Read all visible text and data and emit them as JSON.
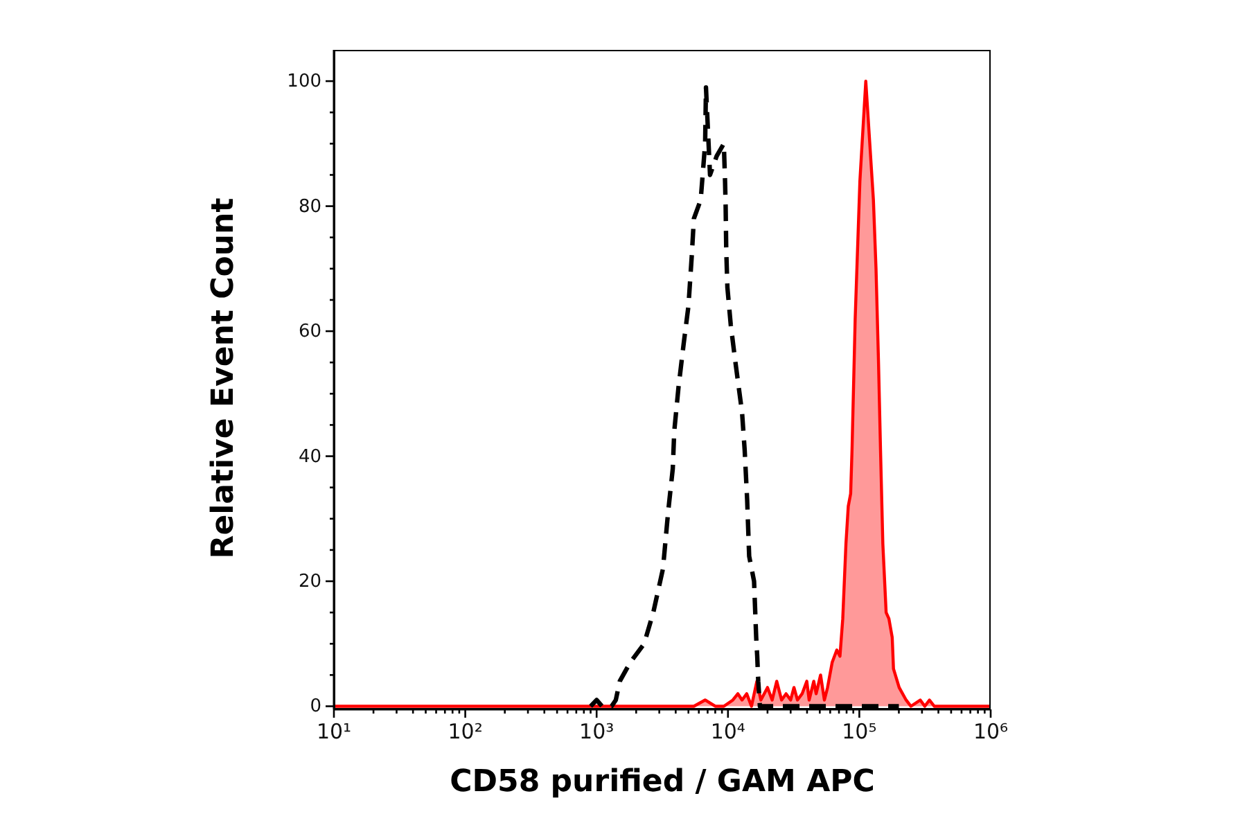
{
  "chart_data": {
    "type": "line",
    "xlabel": "CD58 purified / GAM APC",
    "ylabel": "Relative Event Count",
    "log": "x",
    "xlim": [
      10,
      1000000
    ],
    "ylim": [
      -0.5,
      105
    ],
    "xticks": [
      {
        "value": 10,
        "label": "10¹"
      },
      {
        "value": 20,
        "label": null
      },
      {
        "value": 30,
        "label": null
      },
      {
        "value": 40,
        "label": null
      },
      {
        "value": 50,
        "label": null
      },
      {
        "value": 60,
        "label": null
      },
      {
        "value": 70,
        "label": null
      },
      {
        "value": 80,
        "label": null
      },
      {
        "value": 90,
        "label": null
      },
      {
        "value": 100,
        "label": "10²"
      },
      {
        "value": 200,
        "label": null
      },
      {
        "value": 300,
        "label": null
      },
      {
        "value": 400,
        "label": null
      },
      {
        "value": 500,
        "label": null
      },
      {
        "value": 600,
        "label": null
      },
      {
        "value": 700,
        "label": null
      },
      {
        "value": 800,
        "label": null
      },
      {
        "value": 900,
        "label": null
      },
      {
        "value": 1000,
        "label": "10³"
      },
      {
        "value": 2000,
        "label": null
      },
      {
        "value": 3000,
        "label": null
      },
      {
        "value": 4000,
        "label": null
      },
      {
        "value": 5000,
        "label": null
      },
      {
        "value": 6000,
        "label": null
      },
      {
        "value": 7000,
        "label": null
      },
      {
        "value": 8000,
        "label": null
      },
      {
        "value": 9000,
        "label": null
      },
      {
        "value": 10000,
        "label": "10⁴"
      },
      {
        "value": 20000,
        "label": null
      },
      {
        "value": 30000,
        "label": null
      },
      {
        "value": 40000,
        "label": null
      },
      {
        "value": 50000,
        "label": null
      },
      {
        "value": 60000,
        "label": null
      },
      {
        "value": 70000,
        "label": null
      },
      {
        "value": 80000,
        "label": null
      },
      {
        "value": 90000,
        "label": null
      },
      {
        "value": 100000,
        "label": "10⁵"
      },
      {
        "value": 200000,
        "label": null
      },
      {
        "value": 300000,
        "label": null
      },
      {
        "value": 400000,
        "label": null
      },
      {
        "value": 500000,
        "label": null
      },
      {
        "value": 600000,
        "label": null
      },
      {
        "value": 700000,
        "label": null
      },
      {
        "value": 800000,
        "label": null
      },
      {
        "value": 900000,
        "label": null
      },
      {
        "value": 1000000,
        "label": "10⁶"
      }
    ],
    "yticks": [
      0,
      {
        "value": 5,
        "label": null
      },
      {
        "value": 10,
        "label": null
      },
      {
        "value": 15,
        "label": null
      },
      20,
      {
        "value": 25,
        "label": null
      },
      {
        "value": 30,
        "label": null
      },
      {
        "value": 35,
        "label": null
      },
      40,
      {
        "value": 45,
        "label": null
      },
      {
        "value": 50,
        "label": null
      },
      {
        "value": 55,
        "label": null
      },
      60,
      {
        "value": 65,
        "label": null
      },
      {
        "value": 70,
        "label": null
      },
      {
        "value": 75,
        "label": null
      },
      80,
      {
        "value": 85,
        "label": null
      },
      {
        "value": 90,
        "label": null
      },
      {
        "value": 95,
        "label": null
      },
      100
    ],
    "series": [
      {
        "color": "#000000",
        "line_style": "dashed",
        "x": [
          900,
          1000,
          1100,
          1300,
          1400,
          1500,
          1800,
          2300,
          2700,
          3200,
          3500,
          3800,
          3900,
          4200,
          4600,
          5000,
          5300,
          5500,
          6200,
          6700,
          6800,
          7300,
          8200,
          9300,
          9500,
          9600,
          9700,
          9900,
          10500,
          11400,
          12800,
          13400,
          14000,
          14500,
          15800,
          16400,
          16700,
          17000,
          17500,
          200000
        ],
        "values": [
          0,
          1,
          0,
          0,
          1,
          4,
          7,
          10,
          15,
          22,
          31,
          38,
          44,
          51,
          58,
          64,
          72,
          78,
          81,
          90,
          99,
          85,
          88,
          90,
          84,
          80,
          73,
          67,
          61,
          55,
          47,
          41,
          33,
          24,
          20,
          11,
          8,
          4,
          0,
          0
        ]
      },
      {
        "type": "area",
        "color": "#ff0000",
        "line_style": "solid",
        "x": [
          10,
          5500,
          6700,
          8000,
          9300,
          10900,
          11900,
          12800,
          13900,
          15100,
          16600,
          17800,
          20000,
          21700,
          23500,
          25600,
          27700,
          30000,
          31800,
          33800,
          36700,
          39800,
          41500,
          45000,
          46900,
          50700,
          54200,
          57300,
          62100,
          67400,
          71200,
          74800,
          79100,
          82400,
          85900,
          88000,
          93000,
          101000,
          112000,
          128000,
          134000,
          140000,
          145000,
          151000,
          160000,
          168000,
          178000,
          182000,
          201000,
          227000,
          247000,
          291000,
          315000,
          342000,
          372000,
          1000000
        ],
        "values": [
          0,
          0,
          1,
          0,
          0,
          1,
          2,
          1,
          2,
          0,
          4,
          1,
          3,
          1,
          4,
          1,
          2,
          1,
          3,
          1,
          2,
          4,
          1,
          4,
          2,
          5,
          1,
          3,
          7,
          9,
          8,
          14,
          26,
          32,
          34,
          41,
          62,
          84,
          100,
          81,
          70,
          55,
          41,
          26,
          15,
          14,
          11,
          6,
          3,
          1,
          0,
          1,
          0,
          1,
          0,
          0
        ]
      }
    ]
  }
}
